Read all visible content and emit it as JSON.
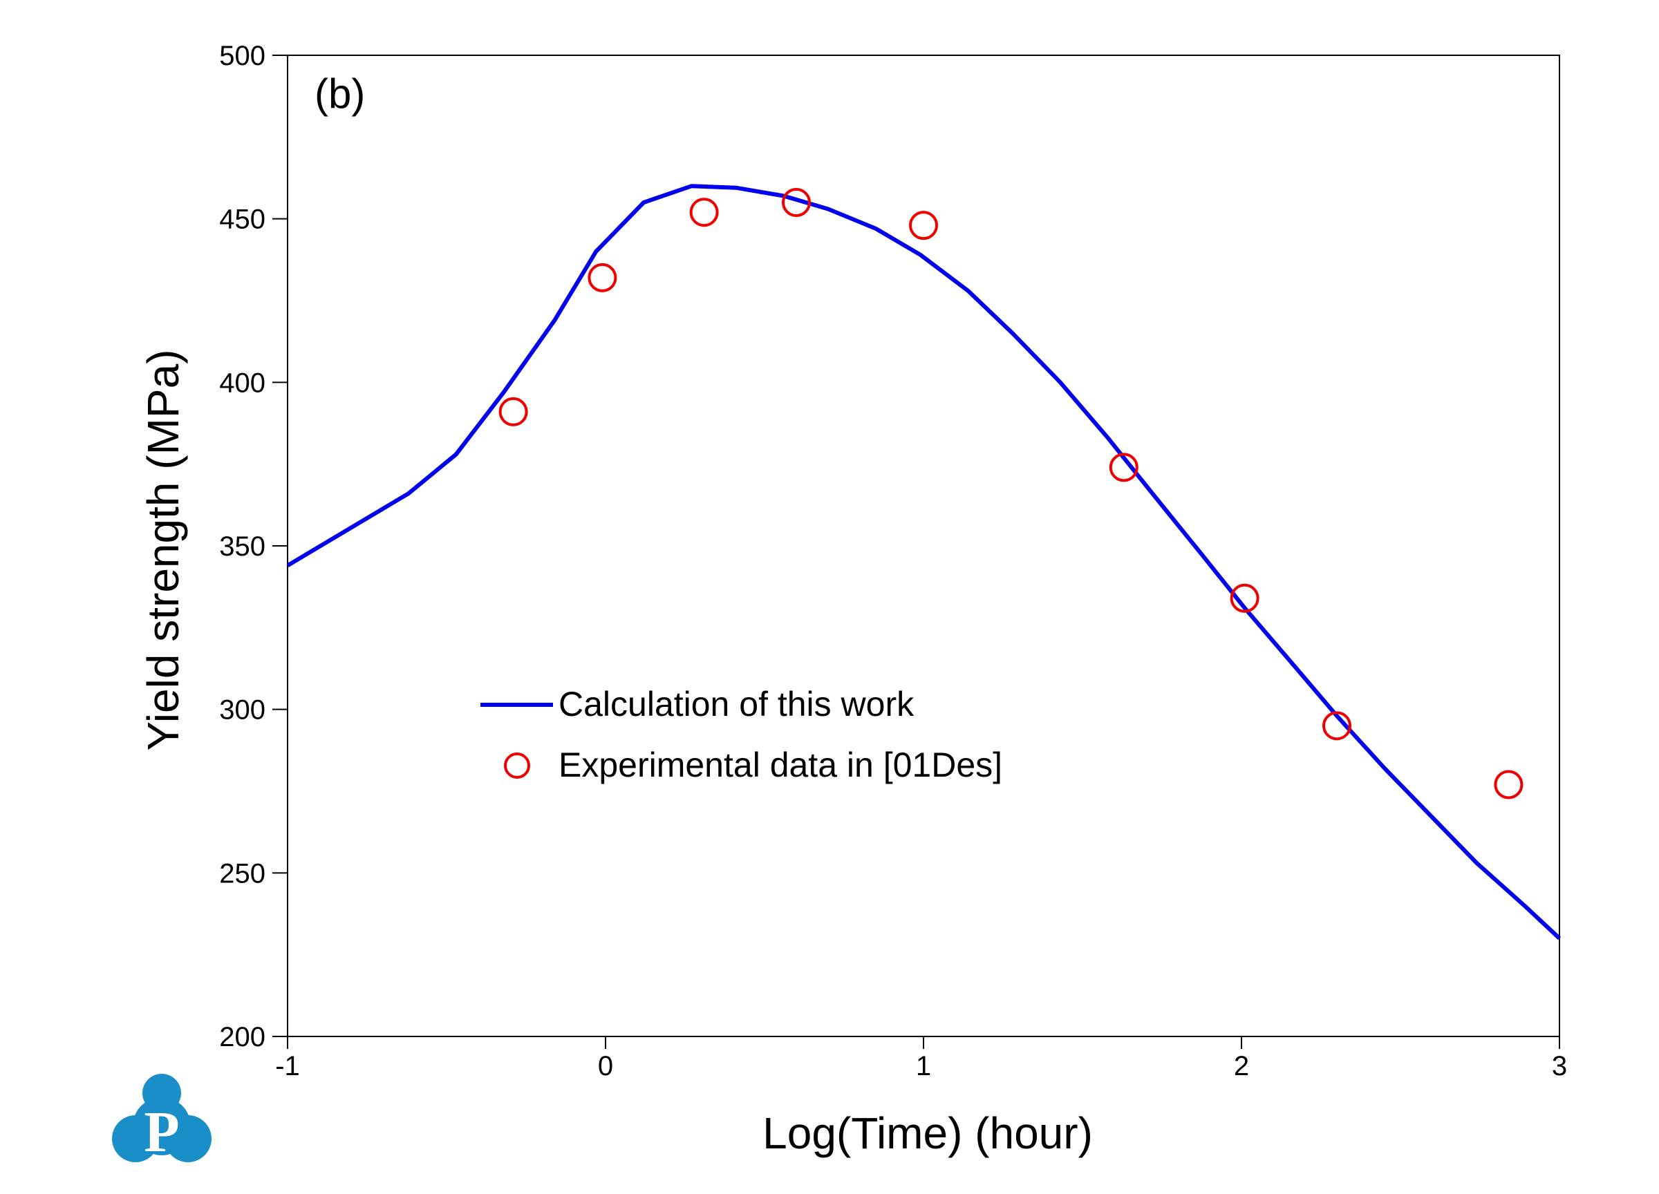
{
  "chart_data": {
    "type": "line",
    "panel_label": "(b)",
    "xlabel": "Log(Time) (hour)",
    "ylabel": "Yield strength (MPa)",
    "xlim": [
      -1,
      3
    ],
    "ylim": [
      200,
      500
    ],
    "xticks": [
      -1,
      0,
      1,
      2,
      3
    ],
    "xtick_labels": [
      "-1",
      "0",
      "1",
      "2",
      "3"
    ],
    "yticks": [
      200,
      250,
      300,
      350,
      400,
      450,
      500
    ],
    "ytick_labels": [
      "200",
      "250",
      "300",
      "350",
      "400",
      "450",
      "500"
    ],
    "grid": false,
    "legend_position": "center-left",
    "series": [
      {
        "name": "Calculation of this work",
        "kind": "line",
        "color": "#0000ee",
        "x": [
          -1.0,
          -0.62,
          -0.47,
          -0.32,
          -0.16,
          -0.03,
          0.12,
          0.27,
          0.41,
          0.56,
          0.7,
          0.85,
          0.99,
          1.14,
          1.28,
          1.43,
          1.58,
          1.72,
          1.87,
          2.01,
          2.16,
          2.3,
          2.45,
          2.6,
          2.74,
          2.89,
          3.0
        ],
        "y": [
          344,
          366,
          378,
          397,
          419,
          440,
          455,
          460,
          459.5,
          457,
          453,
          447,
          439,
          428,
          415,
          400,
          383,
          366,
          348,
          331,
          314,
          298,
          282,
          267,
          253,
          240,
          230
        ]
      },
      {
        "name": "Experimental data in [01Des]",
        "kind": "scatter",
        "color": "#ee0000",
        "x": [
          -0.29,
          -0.01,
          0.31,
          0.6,
          1.0,
          1.63,
          2.01,
          2.3,
          2.84
        ],
        "y": [
          391,
          432,
          452,
          455,
          448,
          374,
          334,
          295,
          277
        ]
      }
    ]
  },
  "logo": {
    "letter": "P",
    "color": "#1a8ec9"
  }
}
